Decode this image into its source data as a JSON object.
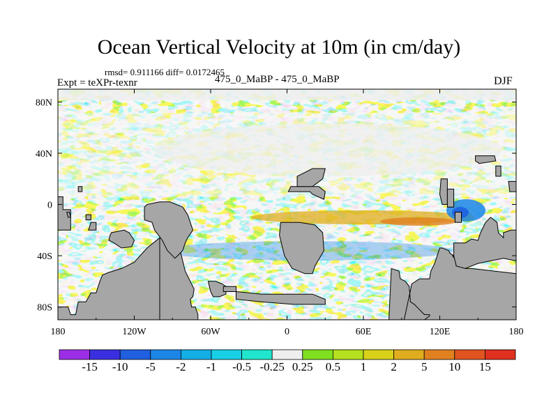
{
  "chart_data": {
    "type": "heatmap",
    "title": "Ocean Vertical Velocity at 10m (in cm/day)",
    "stats_text": "rmsd= 0.911166  diff= 0.0172465",
    "left_label": "Expt = teXPr-texnr",
    "center_label": "475_0_MaBP - 475_0_MaBP",
    "right_label": "DJF",
    "x_ticks": [
      {
        "value": -180,
        "label": "180"
      },
      {
        "value": -120,
        "label": "120W"
      },
      {
        "value": -60,
        "label": "60W"
      },
      {
        "value": 0,
        "label": "0"
      },
      {
        "value": 60,
        "label": "60E"
      },
      {
        "value": 120,
        "label": "120E"
      },
      {
        "value": 180,
        "label": "180"
      }
    ],
    "y_ticks": [
      {
        "value": 80,
        "label": "80N"
      },
      {
        "value": 40,
        "label": "40N"
      },
      {
        "value": 0,
        "label": "0"
      },
      {
        "value": -40,
        "label": "40S"
      },
      {
        "value": -80,
        "label": "80S"
      }
    ],
    "xlim": [
      -180,
      180
    ],
    "ylim": [
      -90,
      90
    ],
    "colorbar": {
      "labels": [
        "-15",
        "-10",
        "-5",
        "-2",
        "-1",
        "-0.5",
        "-0.25",
        "0.25",
        "0.5",
        "1",
        "2",
        "5",
        "10",
        "15"
      ],
      "colors": [
        "#9c2fe6",
        "#3a2fe0",
        "#1f5fe0",
        "#1b86e6",
        "#14aee6",
        "#19cfe6",
        "#1fe6cc",
        "#eeeeee",
        "#7fe01f",
        "#b5e01f",
        "#d9d21a",
        "#e0ad1f",
        "#e0801f",
        "#e0541f",
        "#e0301f"
      ]
    },
    "land_color": "#a6a6a6",
    "land": [
      {
        "lon": [
          -180,
          -172,
          -170,
          -166,
          -164,
          -158,
          -154,
          -150,
          -147,
          -145,
          -140,
          -130,
          -120,
          -110,
          -100,
          -100,
          -180
        ],
        "lat": [
          -80,
          -80,
          -86,
          -86,
          -76,
          -76,
          -69,
          -69,
          -60,
          -55,
          -53,
          -50,
          -45,
          -34,
          -26,
          -90,
          -90
        ]
      },
      {
        "lon": [
          -100,
          -90,
          -84,
          -82,
          -80,
          -78,
          -73,
          -74,
          -76,
          -75,
          -72,
          -70,
          -70,
          -86,
          -90,
          -100
        ],
        "lat": [
          -26,
          -28,
          -36,
          -44,
          -52,
          -56,
          -66,
          -72,
          -74,
          -80,
          -80,
          -86,
          -90,
          -90,
          -90,
          -90
        ]
      },
      {
        "lon": [
          -180,
          -176,
          -176,
          -170,
          -170,
          -180
        ],
        "lat": [
          6,
          6,
          -4,
          -4,
          -20,
          -20
        ]
      },
      {
        "lon": [
          -173,
          -171,
          -170,
          -172
        ],
        "lat": [
          -6,
          -6,
          -10,
          -10
        ]
      },
      {
        "lon": [
          -158,
          -154,
          -154,
          -158
        ],
        "lat": [
          -8,
          -8,
          -12,
          -12
        ]
      },
      {
        "lon": [
          -164,
          -161,
          -161,
          -164
        ],
        "lat": [
          14,
          14,
          10,
          10
        ]
      },
      {
        "lon": [
          -154,
          -150,
          -150,
          -156
        ],
        "lat": [
          -14,
          -14,
          -20,
          -20
        ]
      },
      {
        "lon": [
          -138,
          -128,
          -124,
          -120,
          -122,
          -130,
          -136,
          -140,
          -139
        ],
        "lat": [
          -22,
          -20,
          -22,
          -28,
          -33,
          -34,
          -30,
          -28,
          -24
        ]
      },
      {
        "lon": [
          -110,
          -100,
          -92,
          -82,
          -78,
          -74,
          -78,
          -80,
          -82,
          -86,
          -88,
          -94,
          -98,
          -104,
          -106,
          -112,
          -112
        ],
        "lat": [
          0,
          2,
          2,
          -2,
          -8,
          -20,
          -26,
          -30,
          -36,
          -40,
          -42,
          -36,
          -28,
          -20,
          -14,
          -12,
          -2
        ]
      },
      {
        "lon": [
          -62,
          -56,
          -51,
          -48,
          -48,
          -53,
          -58,
          -60,
          -61
        ],
        "lat": [
          -60,
          -60,
          -62,
          -64,
          -70,
          -72,
          -72,
          -68,
          -64
        ]
      },
      {
        "lon": [
          -50,
          -40,
          -40,
          -50
        ],
        "lat": [
          -64,
          -64,
          -68,
          -68
        ]
      },
      {
        "lon": [
          -40,
          -20,
          0,
          20,
          30,
          30,
          5,
          -20,
          -40
        ],
        "lat": [
          -68,
          -70,
          -70,
          -70,
          -74,
          -78,
          -78,
          -76,
          -74
        ]
      },
      {
        "lon": [
          -5,
          10,
          22,
          28,
          29,
          22,
          20,
          14,
          4,
          -2,
          -6
        ],
        "lat": [
          -14,
          -14,
          -16,
          -22,
          -36,
          -48,
          -54,
          -54,
          -50,
          -40,
          -24
        ]
      },
      {
        "lon": [
          1,
          18,
          20,
          29,
          30,
          25,
          3
        ],
        "lat": [
          10,
          10,
          8,
          4,
          10,
          14,
          14
        ]
      },
      {
        "lon": [
          92,
          103,
          108,
          112,
          112,
          108,
          106,
          104,
          100,
          97,
          96,
          93,
          89,
          88,
          82,
          80,
          180,
          180,
          145,
          140,
          138,
          135,
          134,
          131,
          128,
          127,
          122,
          120,
          118,
          116,
          113,
          112,
          104,
          98
        ],
        "lat": [
          -90,
          -90,
          -90,
          -87,
          -86,
          -86,
          -84,
          -82,
          -78,
          -76,
          -64,
          -60,
          -58,
          -52,
          -50,
          -90,
          -90,
          -54,
          -50,
          -50,
          -48,
          -44,
          -40,
          -40,
          -38,
          -36,
          -34,
          -34,
          -40,
          -46,
          -52,
          -58,
          -58,
          -62
        ]
      },
      {
        "lon": [
          130,
          135,
          140,
          140,
          133,
          133
        ],
        "lat": [
          -40,
          -40,
          -34,
          -46,
          -48,
          -44
        ]
      },
      {
        "lon": [
          131,
          140,
          145,
          150,
          152,
          156,
          160,
          165,
          166,
          170,
          170,
          176,
          180,
          180,
          170,
          160,
          150,
          140,
          133,
          131
        ],
        "lat": [
          -30,
          -30,
          -27,
          -28,
          -22,
          -14,
          -10,
          -14,
          -22,
          -26,
          -22,
          -20,
          -20,
          -44,
          -42,
          -44,
          -46,
          -50,
          -48,
          -40
        ]
      },
      {
        "lon": [
          121,
          126,
          126,
          122,
          120
        ],
        "lat": [
          20,
          20,
          0,
          0,
          8
        ]
      },
      {
        "lon": [
          126,
          131,
          131,
          126
        ],
        "lat": [
          12,
          12,
          -2,
          -2
        ]
      },
      {
        "lon": [
          132,
          137,
          137,
          132
        ],
        "lat": [
          -6,
          -6,
          -14,
          -14
        ]
      },
      {
        "lon": [
          164,
          168,
          168,
          164
        ],
        "lat": [
          30,
          30,
          22,
          22
        ]
      },
      {
        "lon": [
          148,
          163,
          164,
          151,
          148
        ],
        "lat": [
          38,
          38,
          34,
          32,
          34
        ]
      },
      {
        "lon": [
          174,
          180,
          180,
          175
        ],
        "lat": [
          18,
          18,
          10,
          10
        ]
      },
      {
        "lon": [
          8,
          20,
          28,
          30,
          20,
          8
        ],
        "lat": [
          14,
          14,
          20,
          28,
          28,
          22
        ]
      }
    ]
  }
}
